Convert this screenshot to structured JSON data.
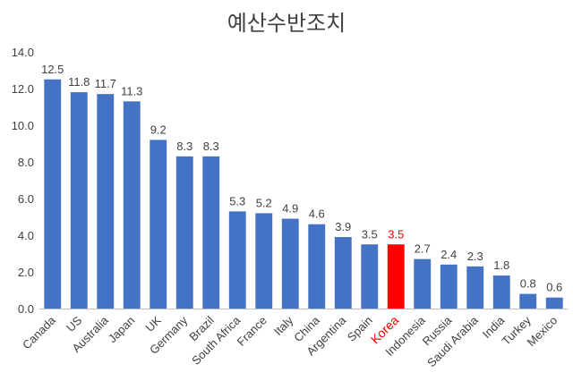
{
  "chart_data": {
    "type": "bar",
    "title": "예산수반조치",
    "xlabel": "",
    "ylabel": "",
    "ylim": [
      0,
      14
    ],
    "yticks": [
      "0.0",
      "2.0",
      "4.0",
      "6.0",
      "8.0",
      "10.0",
      "12.0",
      "14.0"
    ],
    "grid": false,
    "legend": "none",
    "categories": [
      "Canada",
      "US",
      "Australia",
      "Japan",
      "UK",
      "Germany",
      "Brazil",
      "South Africa",
      "France",
      "Italy",
      "China",
      "Argentina",
      "Spain",
      "Korea",
      "Indonesia",
      "Russia",
      "Saudi Arabia",
      "India",
      "Turkey",
      "Mexico"
    ],
    "values": [
      12.5,
      11.8,
      11.7,
      11.3,
      9.2,
      8.3,
      8.3,
      5.3,
      5.2,
      4.9,
      4.6,
      3.9,
      3.5,
      3.5,
      2.7,
      2.4,
      2.3,
      1.8,
      0.8,
      0.6
    ],
    "value_labels": [
      "12.5",
      "11.8",
      "11.7",
      "11.3",
      "9.2",
      "8.3",
      "8.3",
      "5.3",
      "5.2",
      "4.9",
      "4.6",
      "3.9",
      "3.5",
      "3.5",
      "2.7",
      "2.4",
      "2.3",
      "1.8",
      "0.8",
      "0.6"
    ],
    "highlight": "Korea",
    "colors": {
      "bar": "#4472C4",
      "highlight": "#FF0000",
      "text": "#404040",
      "axis": "#BFBFBF"
    }
  }
}
